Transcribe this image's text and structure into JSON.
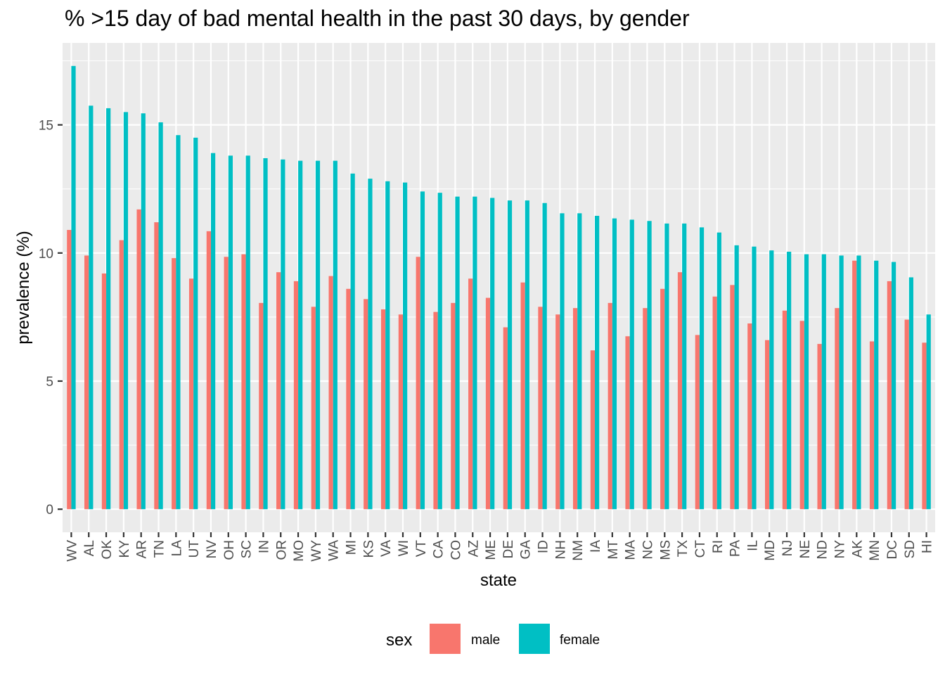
{
  "chart_data": {
    "type": "bar",
    "title": "% >15 day of bad mental health in the past 30 days, by gender",
    "xlabel": "state",
    "ylabel": "prevalence (%)",
    "ylim": [
      -0.9,
      18.2
    ],
    "yticks": [
      0,
      5,
      10,
      15
    ],
    "grid": true,
    "legend": {
      "title": "sex",
      "position": "bottom"
    },
    "categories": [
      "WV",
      "AL",
      "OK",
      "KY",
      "AR",
      "TN",
      "LA",
      "UT",
      "NV",
      "OH",
      "SC",
      "IN",
      "OR",
      "MO",
      "WY",
      "WA",
      "MI",
      "KS",
      "VA",
      "WI",
      "VT",
      "CA",
      "CO",
      "AZ",
      "ME",
      "DE",
      "GA",
      "ID",
      "NH",
      "NM",
      "IA",
      "MT",
      "MA",
      "NC",
      "MS",
      "TX",
      "CT",
      "RI",
      "PA",
      "IL",
      "MD",
      "NJ",
      "NE",
      "ND",
      "NY",
      "AK",
      "MN",
      "DC",
      "SD",
      "HI"
    ],
    "series": [
      {
        "name": "male",
        "color": "#F8766D",
        "values": [
          10.9,
          9.9,
          9.2,
          10.5,
          11.7,
          11.2,
          9.8,
          9.0,
          10.85,
          9.85,
          9.95,
          8.05,
          9.25,
          8.9,
          7.9,
          9.1,
          8.6,
          8.2,
          7.8,
          7.6,
          9.85,
          7.7,
          8.05,
          9.0,
          8.25,
          7.1,
          8.85,
          7.9,
          7.6,
          7.85,
          6.2,
          8.05,
          6.75,
          7.85,
          8.6,
          9.25,
          6.8,
          8.3,
          8.75,
          7.25,
          6.6,
          7.75,
          7.35,
          6.45,
          7.85,
          9.7,
          6.55,
          8.9,
          7.4,
          6.5
        ]
      },
      {
        "name": "female",
        "color": "#00BFC4",
        "values": [
          17.3,
          15.75,
          15.65,
          15.5,
          15.45,
          15.1,
          14.6,
          14.5,
          13.9,
          13.8,
          13.8,
          13.7,
          13.65,
          13.6,
          13.6,
          13.6,
          13.1,
          12.9,
          12.8,
          12.75,
          12.4,
          12.35,
          12.2,
          12.2,
          12.15,
          12.05,
          12.05,
          11.95,
          11.55,
          11.55,
          11.45,
          11.35,
          11.3,
          11.25,
          11.15,
          11.15,
          11.0,
          10.8,
          10.3,
          10.25,
          10.1,
          10.05,
          9.95,
          9.95,
          9.9,
          9.9,
          9.7,
          9.65,
          9.05,
          7.6
        ]
      }
    ]
  }
}
